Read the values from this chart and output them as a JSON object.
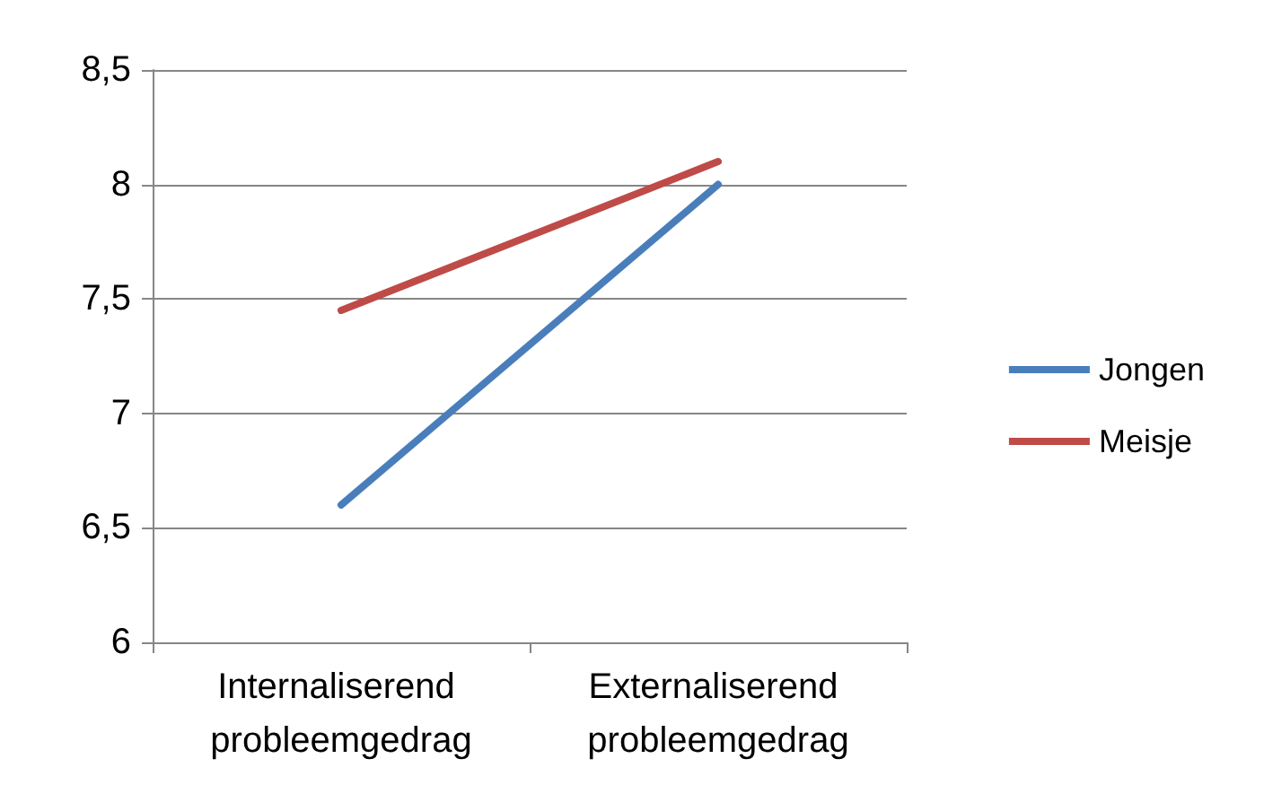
{
  "chart_data": {
    "type": "line",
    "categories": [
      "Internaliserend probleemgedrag",
      "Externaliserend probleemgedrag"
    ],
    "series": [
      {
        "name": "Jongen",
        "color": "#4a7ebb",
        "values": [
          6.6,
          8.0
        ]
      },
      {
        "name": "Meisje",
        "color": "#be4b48",
        "values": [
          7.45,
          8.1
        ]
      }
    ],
    "ylim": [
      6,
      8.5
    ],
    "yticks": [
      6,
      {
        "value": 6.5,
        "label": "6,5"
      },
      7,
      {
        "value": 7.5,
        "label": "7,5"
      },
      8,
      {
        "value": 8.5,
        "label": "8,5"
      }
    ],
    "grid": "y",
    "legend": "right",
    "marker": "none",
    "line_style": "solid"
  }
}
